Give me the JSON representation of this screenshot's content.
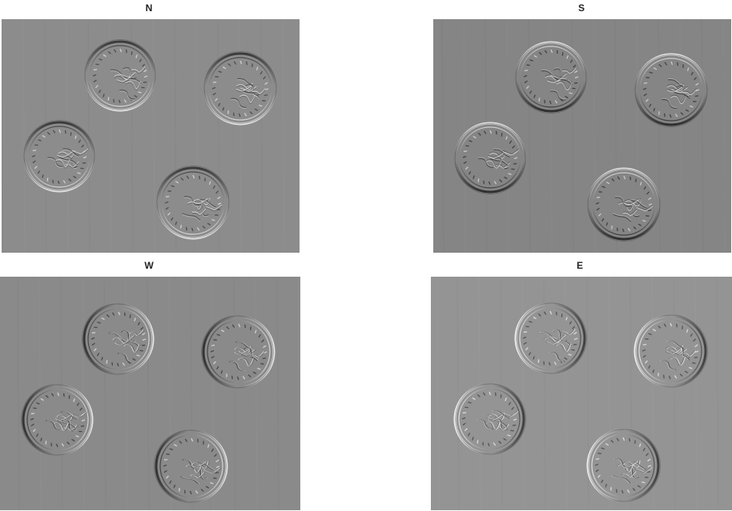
{
  "figure": {
    "background": "#ffffff",
    "panels": [
      {
        "title": "N",
        "light_direction": "north",
        "base_gray": "#8c8c8c",
        "dark_edge": "#3a3a3a",
        "light_edge": "#e6e6e6"
      },
      {
        "title": "S",
        "light_direction": "south",
        "base_gray": "#858585",
        "dark_edge": "#2e2e2e",
        "light_edge": "#e0e0e0"
      },
      {
        "title": "W",
        "light_direction": "west",
        "base_gray": "#8a8a8a",
        "dark_edge": "#333333",
        "light_edge": "#e8e8e8"
      },
      {
        "title": "E",
        "light_direction": "east",
        "base_gray": "#949494",
        "dark_edge": "#404040",
        "light_edge": "#f2f2f2"
      }
    ],
    "coin_count_per_panel": 4
  }
}
